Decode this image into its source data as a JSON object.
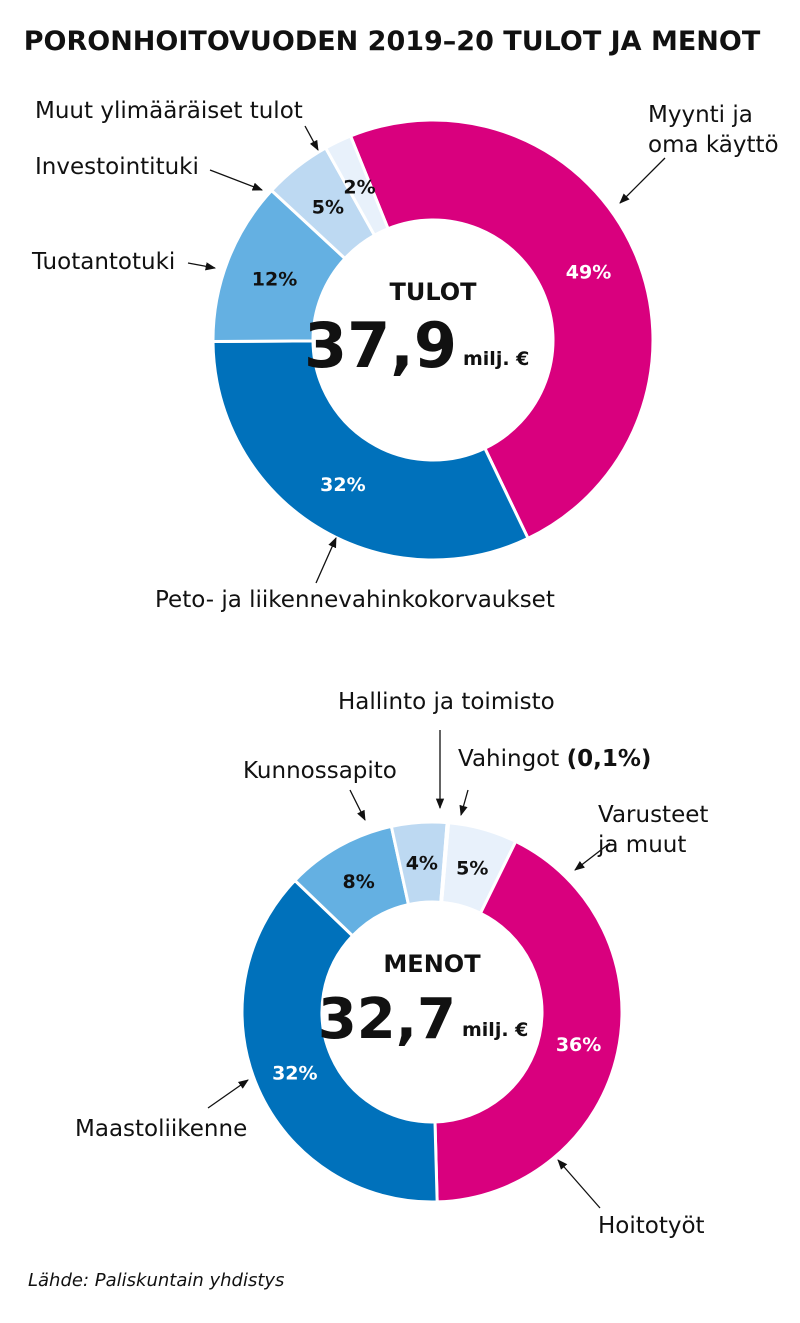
{
  "title": "PORONHOITOVUODEN 2019–20 TULOT JA MENOT",
  "source": "Lähde: Paliskuntain yhdistys",
  "chart_data": [
    {
      "type": "donut",
      "center_title": "TULOT",
      "center_value": "37,9",
      "center_unit": "milj. €",
      "categories": [
        "Myynti ja\noma käyttö",
        "Peto- ja liikennevahinkokorvaukset",
        "Tuotantotuki",
        "Investointituki",
        "Muut ylimääräiset tulot"
      ],
      "values": [
        49,
        32,
        12,
        5,
        2
      ],
      "value_labels": [
        "49%",
        "32%",
        "12%",
        "5%",
        "2%"
      ],
      "colors": [
        "#d9007e",
        "#0071bb",
        "#64b0e2",
        "#bdd9f2",
        "#e8f1fb"
      ]
    },
    {
      "type": "donut",
      "center_title": "MENOT",
      "center_value": "32,7",
      "center_unit": "milj. €",
      "categories": [
        "Varusteet\nja muut",
        "Hoitotyöt",
        "Maastoliikenne",
        "Kunnossapito",
        "Hallinto ja toimisto",
        "Vahingot"
      ],
      "values": [
        5,
        36,
        32,
        8,
        4,
        0.1
      ],
      "value_labels": [
        "5%",
        "36%",
        "32%",
        "8%",
        "4%",
        "(0,1%)"
      ],
      "colors": [
        "#e8f1fb",
        "#d9007e",
        "#0071bb",
        "#64b0e2",
        "#bdd9f2",
        "#e8f1fb"
      ]
    }
  ]
}
